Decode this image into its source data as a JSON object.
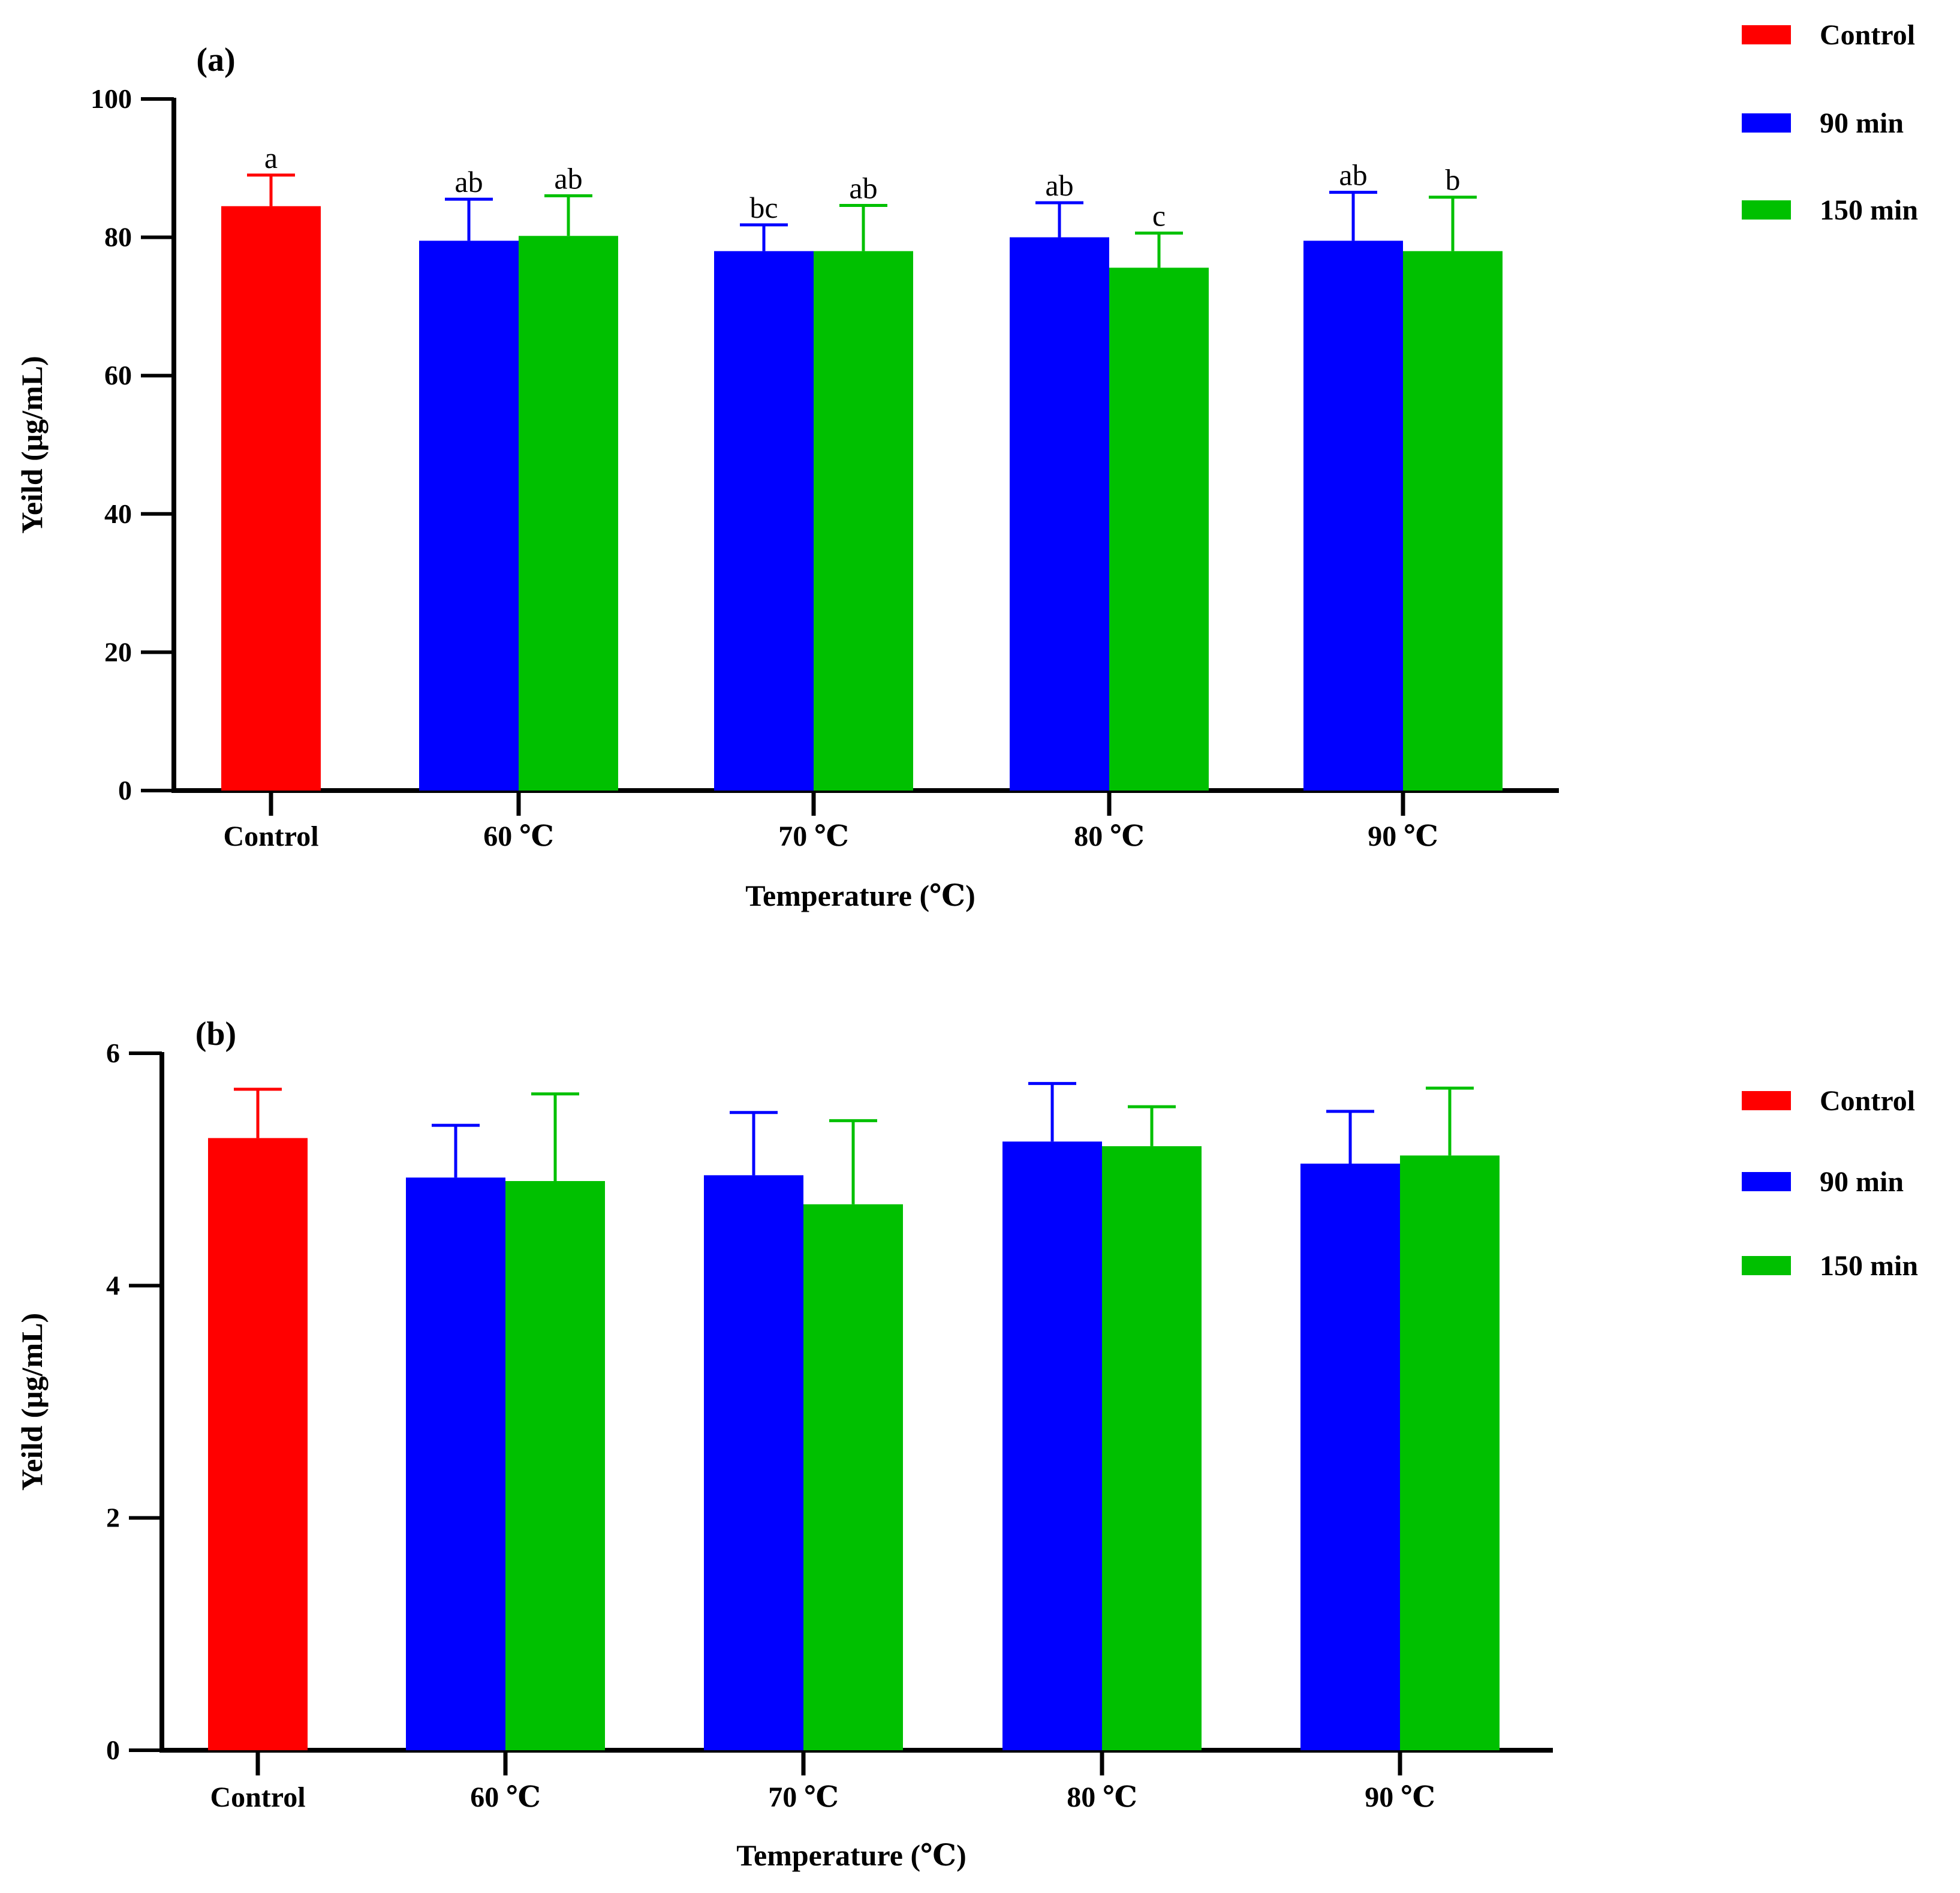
{
  "legend": [
    {
      "label": "Control",
      "color": "#ff0000"
    },
    {
      "label": "90 min",
      "color": "#0000ff"
    },
    {
      "label": "150 min",
      "color": "#00c000"
    }
  ],
  "chart_data": [
    {
      "type": "bar",
      "panel_label": "(a)",
      "xlabel": "Temperature (℃)",
      "ylabel": "Yeild (μg/mL)",
      "ylim": [
        0,
        100
      ],
      "yticks": [
        "0",
        "20",
        "40",
        "60",
        "80",
        "100"
      ],
      "categories": [
        "Control",
        "60 ℃",
        "70 ℃",
        "80 ℃",
        "90 ℃"
      ],
      "series": [
        {
          "name": "Control",
          "color": "#ff0000",
          "values": [
            84.5,
            null,
            null,
            null,
            null
          ],
          "errors": [
            4.5,
            null,
            null,
            null,
            null
          ],
          "significance": [
            "a",
            null,
            null,
            null,
            null
          ]
        },
        {
          "name": "90 min",
          "color": "#0000ff",
          "values": [
            null,
            79.5,
            78.0,
            80.0,
            79.5
          ],
          "errors": [
            null,
            6.0,
            3.8,
            5.0,
            7.0
          ],
          "significance": [
            null,
            "ab",
            "bc",
            "ab",
            "ab"
          ]
        },
        {
          "name": "150 min",
          "color": "#00c000",
          "values": [
            null,
            80.2,
            78.0,
            75.6,
            78.0
          ],
          "errors": [
            null,
            5.8,
            6.6,
            5.0,
            7.8
          ],
          "significance": [
            null,
            "ab",
            "ab",
            "c",
            "b"
          ]
        }
      ]
    },
    {
      "type": "bar",
      "panel_label": "(b)",
      "xlabel": "Temperature (℃)",
      "ylabel": "Yeild (μg/mL)",
      "ylim": [
        0,
        6
      ],
      "yticks": [
        "0",
        "2",
        "4",
        "6"
      ],
      "categories": [
        "Control",
        "60 ℃",
        "70 ℃",
        "80 ℃",
        "90 ℃"
      ],
      "series": [
        {
          "name": "Control",
          "color": "#ff0000",
          "values": [
            5.27,
            null,
            null,
            null,
            null
          ],
          "errors": [
            0.42,
            null,
            null,
            null,
            null
          ]
        },
        {
          "name": "90 min",
          "color": "#0000ff",
          "values": [
            null,
            4.93,
            4.95,
            5.24,
            5.05
          ],
          "errors": [
            null,
            0.45,
            0.54,
            0.5,
            0.45
          ]
        },
        {
          "name": "150 min",
          "color": "#00c000",
          "values": [
            null,
            4.9,
            4.7,
            5.2,
            5.12
          ],
          "errors": [
            null,
            0.75,
            0.72,
            0.34,
            0.58
          ]
        }
      ]
    }
  ]
}
